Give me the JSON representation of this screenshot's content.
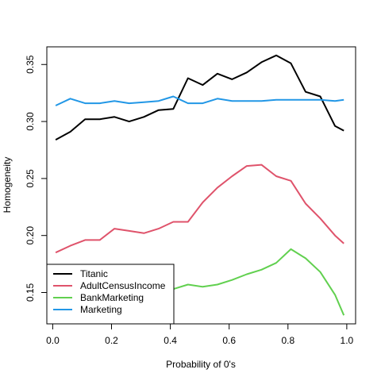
{
  "chart_data": {
    "type": "line",
    "xlabel": "Probability of 0's",
    "ylabel": "Homogeneity",
    "xlim": [
      -0.02,
      1.03
    ],
    "ylim": [
      0.1225,
      0.3655
    ],
    "x_ticks": [
      0.0,
      0.2,
      0.4,
      0.6,
      0.8,
      1.0
    ],
    "x_tick_labels": [
      "0.0",
      "0.2",
      "0.4",
      "0.6",
      "0.8",
      "1.0"
    ],
    "y_ticks": [
      0.15,
      0.2,
      0.25,
      0.3,
      0.35
    ],
    "y_tick_labels": [
      "0.15",
      "0.20",
      "0.25",
      "0.30",
      "0.35"
    ],
    "legend_position": "bottom-left",
    "x": [
      0.01,
      0.06,
      0.11,
      0.16,
      0.21,
      0.26,
      0.31,
      0.36,
      0.41,
      0.46,
      0.51,
      0.56,
      0.61,
      0.66,
      0.71,
      0.76,
      0.81,
      0.86,
      0.91,
      0.96,
      0.99
    ],
    "series": [
      {
        "name": "Titanic",
        "color": "#000000",
        "values": [
          0.284,
          0.291,
          0.302,
          0.302,
          0.304,
          0.3,
          0.304,
          0.31,
          0.311,
          0.338,
          0.332,
          0.342,
          0.337,
          0.343,
          0.352,
          0.358,
          0.351,
          0.326,
          0.322,
          0.296,
          0.292
        ]
      },
      {
        "name": "AdultCensusIncome",
        "color": "#DF536B",
        "values": [
          0.185,
          0.191,
          0.196,
          0.196,
          0.206,
          0.204,
          0.202,
          0.206,
          0.212,
          0.212,
          0.229,
          0.242,
          0.252,
          0.261,
          0.262,
          0.252,
          0.248,
          0.228,
          0.215,
          0.2,
          0.193
        ]
      },
      {
        "name": "BankMarketing",
        "color": "#61D04F",
        "values": [
          0.14,
          0.141,
          0.142,
          0.144,
          0.146,
          0.148,
          0.15,
          0.152,
          0.153,
          0.157,
          0.155,
          0.157,
          0.161,
          0.166,
          0.17,
          0.176,
          0.188,
          0.18,
          0.168,
          0.148,
          0.13
        ]
      },
      {
        "name": "Marketing",
        "color": "#2297E6",
        "values": [
          0.314,
          0.32,
          0.316,
          0.316,
          0.318,
          0.316,
          0.317,
          0.318,
          0.322,
          0.316,
          0.316,
          0.32,
          0.318,
          0.318,
          0.318,
          0.319,
          0.319,
          0.319,
          0.319,
          0.318,
          0.319
        ]
      }
    ]
  }
}
